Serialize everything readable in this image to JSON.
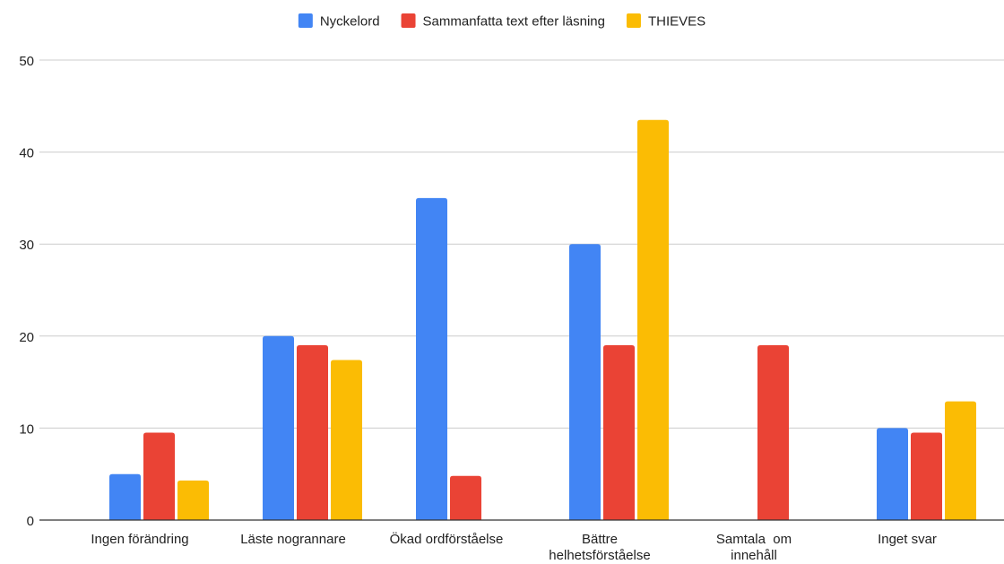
{
  "chart_data": {
    "type": "bar",
    "title": "",
    "xlabel": "",
    "ylabel": "",
    "ylim": [
      0,
      50
    ],
    "y_ticks": [
      "0",
      "10",
      "20",
      "30",
      "40",
      "50"
    ],
    "grid": true,
    "legend_position": "top",
    "categories": [
      [
        "Ingen förändring"
      ],
      [
        "Läste nogrannare"
      ],
      [
        "Ökad ordförståelse"
      ],
      [
        "Bättre",
        "helhetsförståelse"
      ],
      [
        "Samtala  om",
        "innehåll"
      ],
      [
        "Inget svar"
      ]
    ],
    "series": [
      {
        "name": "Nyckelord",
        "color": "#4285F4",
        "values": [
          5,
          20,
          35,
          30,
          0,
          10
        ]
      },
      {
        "name": "Sammanfatta text efter läsning",
        "color": "#EA4335",
        "values": [
          9.5,
          19,
          4.8,
          19,
          19,
          9.5
        ]
      },
      {
        "name": "THIEVES",
        "color": "#FBBC04",
        "values": [
          4.3,
          17.4,
          0,
          43.5,
          0,
          12.9
        ]
      }
    ]
  }
}
